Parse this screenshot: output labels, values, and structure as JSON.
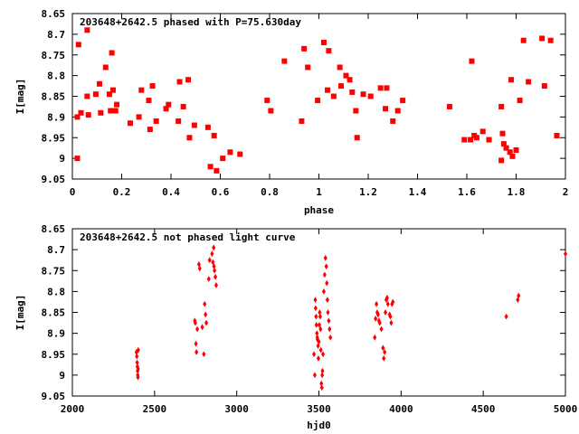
{
  "chart_data": [
    {
      "type": "scatter",
      "title": "203648+2642.5 phased with P=75.630day",
      "xlabel": "phase",
      "ylabel": "I[mag]",
      "xlim": [
        0,
        2
      ],
      "ylim": [
        9.05,
        8.65
      ],
      "y_inverted": true,
      "xticks": [
        "0",
        "0.2",
        "0.4",
        "0.6",
        "0.8",
        "1",
        "1.2",
        "1.4",
        "1.6",
        "1.8",
        "2"
      ],
      "xtick_values": [
        0,
        0.2,
        0.4,
        0.6,
        0.8,
        1,
        1.2,
        1.4,
        1.6,
        1.8,
        2
      ],
      "yticks": [
        "8.65",
        "8.7",
        "8.75",
        "8.8",
        "8.85",
        "8.9",
        "8.95",
        "9",
        "9.05"
      ],
      "ytick_values": [
        8.65,
        8.7,
        8.75,
        8.8,
        8.85,
        8.9,
        8.95,
        9,
        9.05
      ],
      "marker": "filled-square",
      "color": "#ff0000",
      "series": [
        {
          "x": [
            0.02,
            0.02,
            0.025,
            0.035,
            0.06,
            0.06,
            0.065,
            0.095,
            0.11,
            0.115,
            0.135,
            0.15,
            0.155,
            0.16,
            0.165,
            0.175,
            0.18,
            0.235,
            0.27,
            0.28,
            0.31,
            0.315,
            0.325,
            0.34,
            0.38,
            0.39,
            0.43,
            0.435,
            0.45,
            0.47,
            0.475,
            0.495,
            0.55,
            0.56,
            0.575,
            0.585,
            0.61,
            0.64,
            0.68,
            0.79,
            0.805,
            0.86,
            0.93,
            0.94,
            0.955,
            0.995,
            1.02,
            1.035,
            1.04,
            1.06,
            1.085,
            1.09,
            1.11,
            1.125,
            1.135,
            1.15,
            1.155,
            1.18,
            1.21,
            1.25,
            1.27,
            1.275,
            1.3,
            1.32,
            1.34,
            1.53,
            1.59,
            1.615,
            1.62,
            1.63,
            1.64,
            1.665,
            1.69,
            1.74,
            1.74,
            1.745,
            1.75,
            1.76,
            1.775,
            1.78,
            1.785,
            1.8,
            1.815,
            1.83,
            1.85,
            1.905,
            1.915,
            1.94,
            1.965
          ],
          "y": [
            8.9,
            9.0,
            8.725,
            8.89,
            8.69,
            8.85,
            8.895,
            8.845,
            8.82,
            8.89,
            8.78,
            8.845,
            8.885,
            8.745,
            8.835,
            8.885,
            8.87,
            8.915,
            8.9,
            8.835,
            8.86,
            8.93,
            8.825,
            8.91,
            8.88,
            8.87,
            8.91,
            8.815,
            8.875,
            8.81,
            8.95,
            8.92,
            8.925,
            9.02,
            8.945,
            9.03,
            9.0,
            8.985,
            8.99,
            8.86,
            8.885,
            8.765,
            8.91,
            8.735,
            8.78,
            8.86,
            8.72,
            8.835,
            8.74,
            8.85,
            8.78,
            8.825,
            8.8,
            8.81,
            8.84,
            8.885,
            8.95,
            8.845,
            8.85,
            8.83,
            8.88,
            8.83,
            8.91,
            8.885,
            8.86,
            8.875,
            8.955,
            8.955,
            8.765,
            8.945,
            8.95,
            8.935,
            8.955,
            9.005,
            8.875,
            8.94,
            8.965,
            8.975,
            8.985,
            8.81,
            8.995,
            8.98,
            8.86,
            8.715,
            8.815,
            8.71,
            8.825,
            8.715,
            8.945
          ]
        }
      ]
    },
    {
      "type": "scatter",
      "title": "203648+2642.5 not phased light curve",
      "xlabel": "hjd0",
      "ylabel": "I[mag]",
      "xlim": [
        2000,
        5000
      ],
      "ylim": [
        9.05,
        8.65
      ],
      "y_inverted": true,
      "xticks": [
        "2000",
        "2500",
        "3000",
        "3500",
        "4000",
        "4500",
        "5000"
      ],
      "xtick_values": [
        2000,
        2500,
        3000,
        3500,
        4000,
        4500,
        5000
      ],
      "yticks": [
        "8.65",
        "8.7",
        "8.75",
        "8.8",
        "8.85",
        "8.9",
        "8.95",
        "9",
        "9.05"
      ],
      "ytick_values": [
        8.65,
        8.7,
        8.75,
        8.8,
        8.85,
        8.9,
        8.95,
        9,
        9.05
      ],
      "marker": "filled-diamond",
      "color": "#ff0000",
      "series": [
        {
          "x": [
            2390,
            2392,
            2394,
            2396,
            2397,
            2398,
            2399,
            2400,
            2401,
            2745,
            2748,
            2752,
            2755,
            2760,
            2770,
            2775,
            2790,
            2800,
            2805,
            2810,
            2815,
            2830,
            2835,
            2850,
            2855,
            2860,
            2862,
            2865,
            2870,
            2875,
            3470,
            3475,
            3478,
            3480,
            3483,
            3485,
            3488,
            3490,
            3492,
            3495,
            3497,
            3500,
            3503,
            3505,
            3508,
            3510,
            3512,
            3515,
            3518,
            3520,
            3522,
            3525,
            3530,
            3535,
            3540,
            3545,
            3548,
            3552,
            3555,
            3560,
            3565,
            3570,
            3840,
            3845,
            3850,
            3855,
            3860,
            3865,
            3870,
            3880,
            3890,
            3895,
            3900,
            3905,
            3910,
            3915,
            3920,
            3930,
            3935,
            3940,
            3945,
            3950,
            4640,
            4710,
            4715,
            5000
          ],
          "y": [
            8.945,
            8.955,
            8.97,
            8.98,
            8.99,
            9.0,
            9.005,
            8.985,
            8.94,
            8.87,
            8.875,
            8.925,
            8.945,
            8.89,
            8.735,
            8.745,
            8.885,
            8.95,
            8.83,
            8.855,
            8.875,
            8.77,
            8.725,
            8.71,
            8.73,
            8.695,
            8.74,
            8.75,
            8.765,
            8.785,
            8.95,
            9.0,
            8.82,
            8.84,
            8.86,
            8.88,
            8.9,
            8.91,
            8.915,
            8.93,
            8.96,
            8.92,
            8.88,
            8.85,
            8.86,
            8.89,
            8.94,
            9.02,
            9.03,
            9.0,
            8.99,
            8.95,
            8.8,
            8.76,
            8.72,
            8.74,
            8.78,
            8.82,
            8.85,
            8.87,
            8.89,
            8.91,
            8.91,
            8.865,
            8.83,
            8.85,
            8.855,
            8.87,
            8.875,
            8.89,
            8.935,
            8.96,
            8.945,
            8.85,
            8.82,
            8.815,
            8.83,
            8.855,
            8.86,
            8.875,
            8.83,
            8.825,
            8.86,
            8.82,
            8.81,
            8.71
          ]
        }
      ]
    }
  ]
}
